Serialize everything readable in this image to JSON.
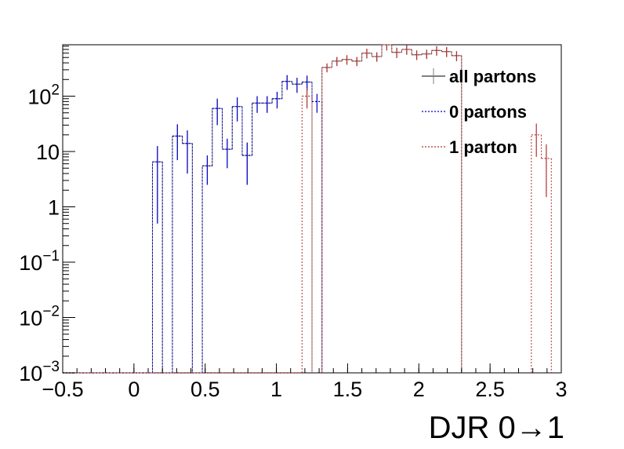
{
  "chart_data": {
    "type": "line",
    "title": "",
    "xlabel": "DJR 0→1",
    "ylabel": "",
    "xlim": [
      -0.5,
      3
    ],
    "ylim": [
      0.001,
      850
    ],
    "yscale": "log",
    "grid": false,
    "legend_position": "top-right",
    "x_ticks": [
      {
        "value": -0.5,
        "label": "−0.5"
      },
      {
        "value": 0,
        "label": "0"
      },
      {
        "value": 0.5,
        "label": "0.5"
      },
      {
        "value": 1,
        "label": "1"
      },
      {
        "value": 1.5,
        "label": "1.5"
      },
      {
        "value": 2,
        "label": "2"
      },
      {
        "value": 2.5,
        "label": "2.5"
      },
      {
        "value": 3,
        "label": "3"
      }
    ],
    "y_ticks": [
      {
        "value": 0.001,
        "base": "10",
        "exp": "−3"
      },
      {
        "value": 0.01,
        "base": "10",
        "exp": "−2"
      },
      {
        "value": 0.1,
        "base": "10",
        "exp": "−1"
      },
      {
        "value": 1,
        "base": "1",
        "exp": ""
      },
      {
        "value": 10,
        "base": "10",
        "exp": ""
      },
      {
        "value": 100,
        "base": "10",
        "exp": "2"
      }
    ],
    "bin_width": 0.07,
    "x_start": -0.5,
    "series": [
      {
        "name": "all partons",
        "color": "#808080",
        "style": "solid",
        "values": [
          0.001,
          0.001,
          0.001,
          0.001,
          0.001,
          0.001,
          0.001,
          0.001,
          0.001,
          6.5,
          0.001,
          19,
          14,
          0.001,
          5.5,
          60,
          11,
          65,
          8.5,
          75,
          75,
          90,
          185,
          165,
          180,
          0,
          330,
          430,
          460,
          430,
          600,
          520,
          850,
          620,
          700,
          560,
          580,
          670,
          640,
          540,
          0,
          0,
          0,
          0,
          0,
          0,
          0,
          0,
          0,
          0
        ],
        "errors": [
          0,
          0,
          0,
          0,
          0,
          0,
          0,
          0,
          0,
          6,
          0,
          12,
          10,
          0,
          3,
          30,
          6,
          30,
          6,
          25,
          25,
          30,
          55,
          50,
          55,
          0,
          60,
          80,
          90,
          80,
          120,
          100,
          180,
          130,
          140,
          110,
          110,
          130,
          130,
          110,
          0,
          0,
          0,
          0,
          0,
          0,
          0,
          0,
          0,
          0
        ]
      },
      {
        "name": "0 partons",
        "color": "#0000cc",
        "style": "dotted",
        "values": [
          0.001,
          0.001,
          0.001,
          0.001,
          0.001,
          0.001,
          0.001,
          0.001,
          0.001,
          6.5,
          0.001,
          19,
          14,
          0.001,
          5.5,
          60,
          11,
          65,
          8.5,
          75,
          75,
          90,
          185,
          165,
          180,
          80,
          0,
          0,
          0,
          0,
          0,
          0,
          0,
          0,
          0,
          0,
          0,
          0,
          0,
          0,
          0,
          0,
          0,
          0,
          0,
          0,
          0,
          0,
          0,
          0
        ],
        "errors": [
          0,
          0,
          0,
          0,
          0,
          0,
          0,
          0,
          0,
          6,
          0,
          12,
          10,
          0,
          3,
          30,
          6,
          30,
          6,
          25,
          25,
          30,
          55,
          50,
          55,
          30,
          0,
          0,
          0,
          0,
          0,
          0,
          0,
          0,
          0,
          0,
          0,
          0,
          0,
          0,
          0,
          0,
          0,
          0,
          0,
          0,
          0,
          0,
          0,
          0
        ]
      },
      {
        "name": "1 parton",
        "color": "#b03030",
        "style": "dotted",
        "values": [
          0.001,
          0.001,
          0.001,
          0.001,
          0.001,
          0.001,
          0.001,
          0.001,
          0.001,
          0.001,
          0.001,
          0.001,
          0.001,
          0.001,
          0.001,
          0.001,
          0.001,
          0.001,
          0.001,
          0.001,
          0.001,
          0.001,
          0.001,
          0.001,
          100,
          0,
          330,
          430,
          460,
          430,
          600,
          520,
          850,
          620,
          700,
          560,
          580,
          670,
          640,
          540,
          0,
          0,
          0,
          0,
          0,
          0,
          0,
          20,
          7.5,
          0
        ],
        "errors": [
          0,
          0,
          0,
          0,
          0,
          0,
          0,
          0,
          0,
          0,
          0,
          0,
          0,
          0,
          0,
          0,
          0,
          0,
          0,
          0,
          0,
          0,
          0,
          0,
          40,
          0,
          60,
          80,
          90,
          80,
          120,
          100,
          180,
          130,
          140,
          110,
          110,
          130,
          130,
          110,
          0,
          0,
          0,
          0,
          0,
          0,
          0,
          12,
          6,
          0
        ]
      }
    ]
  }
}
